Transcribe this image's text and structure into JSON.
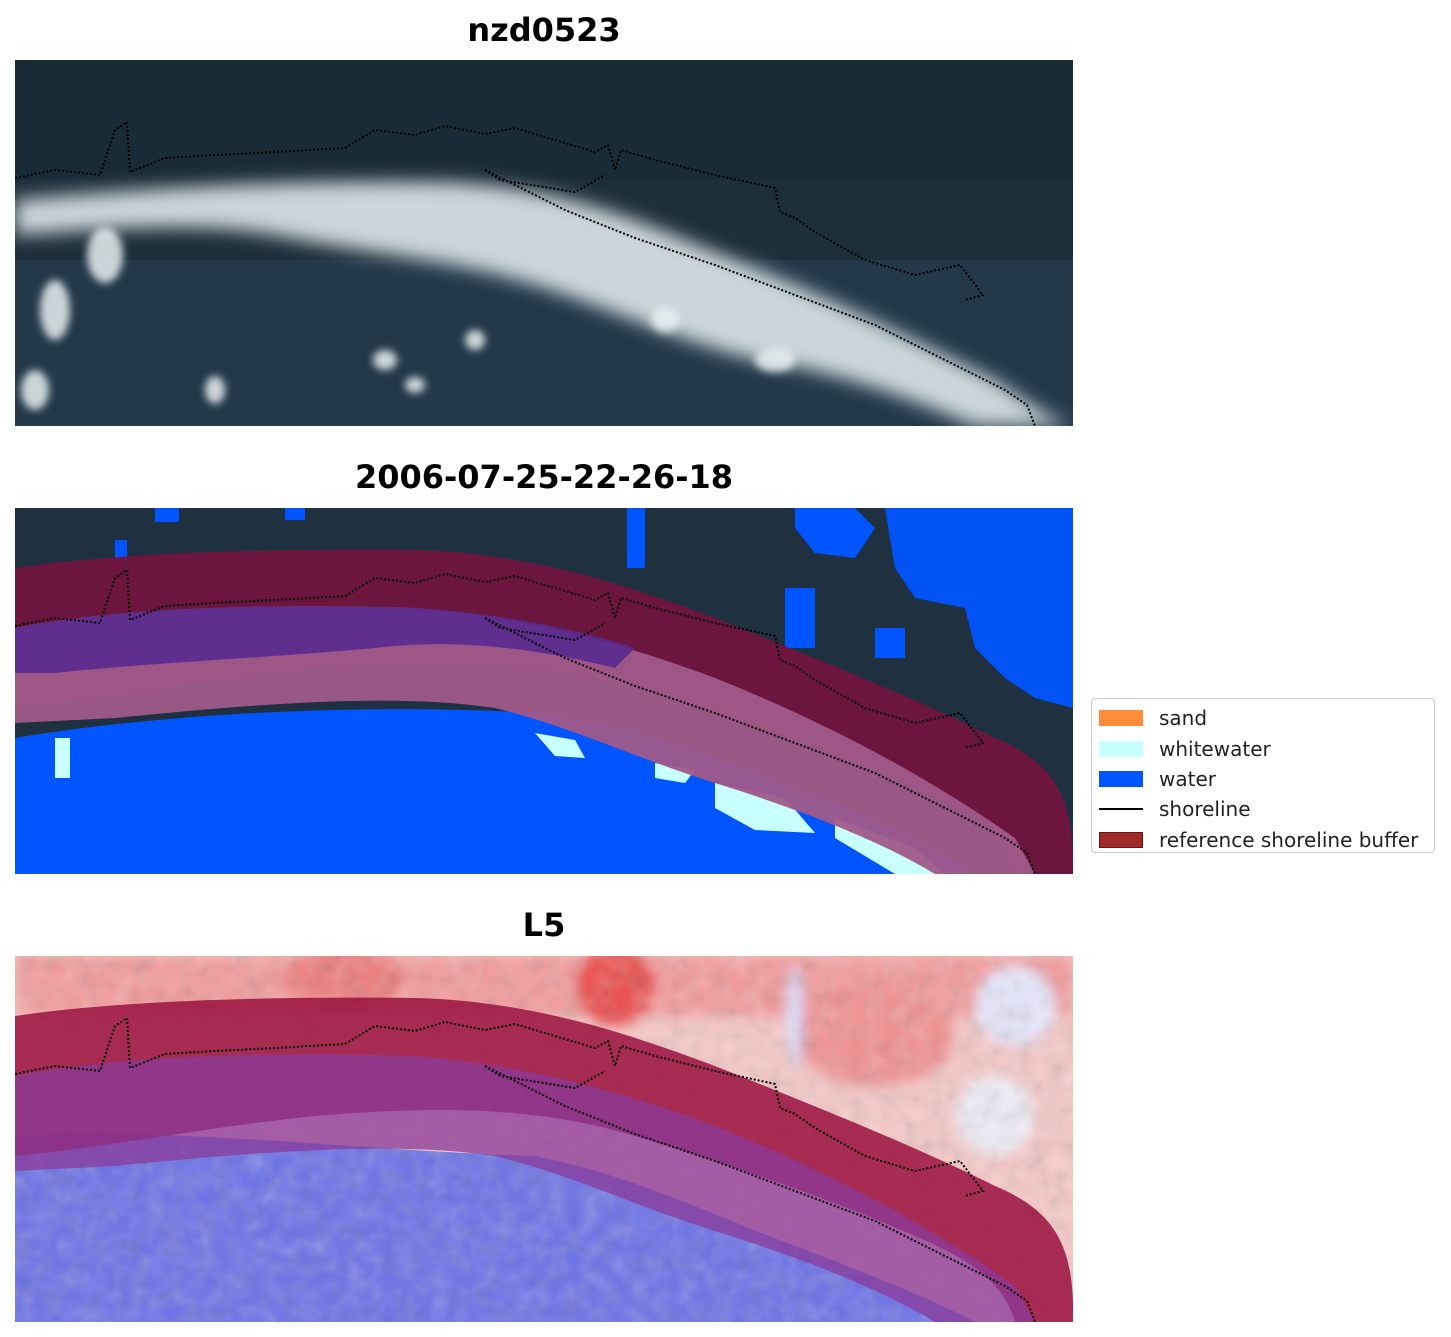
{
  "panels": [
    {
      "title": "nzd0523"
    },
    {
      "title": "2006-07-25-22-26-18"
    },
    {
      "title": "L5"
    }
  ],
  "legend": {
    "items": [
      {
        "label": "sand",
        "color": "#ff8c3a",
        "kind": "patch"
      },
      {
        "label": "whitewater",
        "color": "#c8ffff",
        "kind": "patch"
      },
      {
        "label": "water",
        "color": "#0055ff",
        "kind": "patch"
      },
      {
        "label": "shoreline",
        "color": "#000000",
        "kind": "line"
      },
      {
        "label": "reference shoreline buffer",
        "color": "#8b1a1a",
        "kind": "patch"
      }
    ]
  },
  "colors": {
    "sea_dark": "#1f3140",
    "surf": "#e8eef0",
    "water_class": "#0055ff",
    "buffer": "#7a1040"
  }
}
